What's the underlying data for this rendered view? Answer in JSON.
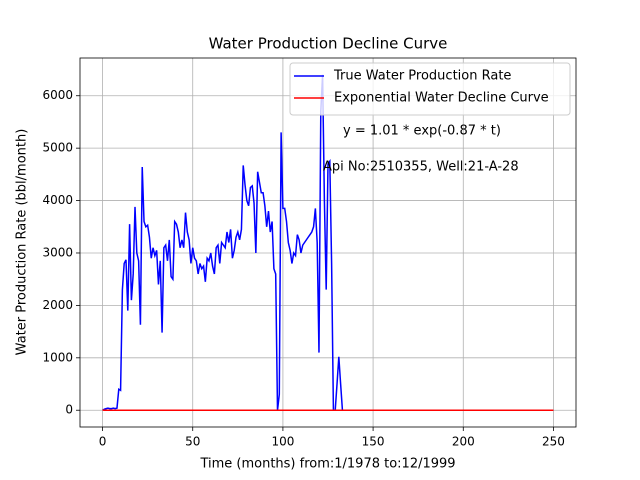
{
  "chart_data": {
    "type": "line",
    "title": "Water Production Decline Curve",
    "xlabel": "Time (months) from:1/1978 to:12/1999",
    "ylabel": "Water Production Rate (bbl/month)",
    "annotations": [
      "y = 1.01 * exp(-0.87 * t)",
      "Api No:2510355, Well:21-A-28"
    ],
    "xlim": [
      -12.5,
      262.5
    ],
    "xticks": [
      0,
      50,
      100,
      150,
      200,
      250
    ],
    "ylim": [
      -320,
      6720
    ],
    "yticks": [
      0,
      1000,
      2000,
      3000,
      4000,
      5000,
      6000
    ],
    "grid": true,
    "legend": "upper right",
    "series": [
      {
        "name": "True Water Production Rate",
        "color": "#0000ff",
        "x": [
          0,
          1,
          2,
          3,
          4,
          5,
          6,
          7,
          8,
          9,
          10,
          11,
          12,
          13,
          14,
          15,
          16,
          17,
          18,
          19,
          20,
          21,
          22,
          23,
          24,
          25,
          26,
          27,
          28,
          29,
          30,
          31,
          32,
          33,
          34,
          35,
          36,
          37,
          38,
          39,
          40,
          41,
          42,
          43,
          44,
          45,
          46,
          47,
          48,
          49,
          50,
          51,
          52,
          53,
          54,
          55,
          56,
          57,
          58,
          59,
          60,
          61,
          62,
          63,
          64,
          65,
          66,
          67,
          68,
          69,
          70,
          71,
          72,
          73,
          74,
          75,
          76,
          77,
          78,
          79,
          80,
          81,
          82,
          83,
          84,
          85,
          86,
          87,
          88,
          89,
          90,
          91,
          92,
          93,
          94,
          95,
          96,
          97,
          98,
          99,
          100,
          101,
          102,
          103,
          104,
          105,
          106,
          107,
          108,
          109,
          110,
          111,
          112,
          113,
          114,
          115,
          116,
          117,
          118,
          119,
          120,
          121,
          122,
          123,
          124,
          125,
          126,
          127,
          128,
          129,
          130,
          131,
          132,
          133,
          250
        ],
        "values": [
          0,
          20,
          30,
          40,
          30,
          30,
          40,
          30,
          40,
          400,
          380,
          2300,
          2800,
          2870,
          1900,
          3550,
          2100,
          2600,
          3880,
          3000,
          2850,
          1630,
          4640,
          3600,
          3500,
          3530,
          3300,
          2900,
          3100,
          2950,
          3050,
          2400,
          2850,
          1480,
          3100,
          3150,
          2850,
          3250,
          2550,
          2500,
          3600,
          3550,
          3400,
          3100,
          3250,
          3100,
          3770,
          3400,
          3250,
          2800,
          3100,
          2900,
          2850,
          2600,
          2800,
          2700,
          2750,
          2450,
          2900,
          2850,
          3000,
          2750,
          2600,
          3100,
          3150,
          2800,
          3200,
          3150,
          3100,
          3400,
          3200,
          3450,
          2900,
          3050,
          3300,
          3400,
          3250,
          3450,
          4670,
          4300,
          4000,
          3900,
          4250,
          4280,
          3950,
          3000,
          4550,
          4350,
          4150,
          4150,
          3900,
          3500,
          3800,
          3400,
          3600,
          2700,
          2600,
          0,
          300,
          5300,
          3850,
          3850,
          3600,
          3200,
          3050,
          2800,
          3000,
          2950,
          3350,
          3250,
          3000,
          3150,
          3200,
          3250,
          3300,
          3350,
          3400,
          3500,
          3850,
          3200,
          1100,
          5700,
          6400,
          4000,
          2300,
          4700,
          4750,
          2800,
          0,
          0,
          500,
          1020,
          500,
          0,
          0
        ]
      },
      {
        "name": "Exponential Water Decline Curve",
        "color": "#ff0000",
        "x": [
          0,
          1,
          2,
          5,
          250
        ],
        "values": [
          1.01,
          0.42,
          0.18,
          0.013,
          0
        ]
      }
    ]
  }
}
